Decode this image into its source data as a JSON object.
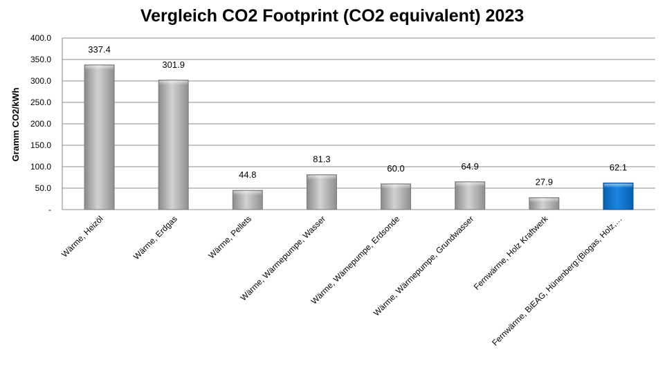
{
  "chart_data": {
    "type": "bar",
    "title": "Vergleich CO2 Footprint (CO2 equivalent) 2023",
    "xlabel": "",
    "ylabel": "Gramm CO2/kWh",
    "ylim": [
      0,
      400
    ],
    "yticks": [
      0,
      50,
      100,
      150,
      200,
      250,
      300,
      350,
      400
    ],
    "ytick_labels": [
      "-",
      "50.0",
      "100.0",
      "150.0",
      "200.0",
      "250.0",
      "300.0",
      "350.0",
      "400.0"
    ],
    "grid": true,
    "legend": "none",
    "categories": [
      "Wärme, Heizöl",
      "Wärme, Erdgas",
      "Wärme, Pellets",
      "Wärme, Wärmepumpe, Wasser",
      "Wärme, Wämepumpe, Erdsonde",
      "Wärme, Wärmepumpe, Grundwasser",
      "Fernwärme, Holz Kraftwerk",
      "Fernwärme, BiEAG, Hünenberg:(Biogas, Holz,…"
    ],
    "values": [
      337.4,
      301.9,
      44.8,
      81.3,
      60.0,
      64.9,
      27.9,
      62.1
    ],
    "value_labels": [
      "337.4",
      "301.9",
      "44.8",
      "81.3",
      "60.0",
      "64.9",
      "27.9",
      "62.1"
    ],
    "highlighted_index": 7,
    "colors": {
      "bar_default": "#a6a6a6",
      "bar_highlight": "#0b72c9",
      "grid": "#8c8c8c",
      "axis": "#808080"
    }
  }
}
